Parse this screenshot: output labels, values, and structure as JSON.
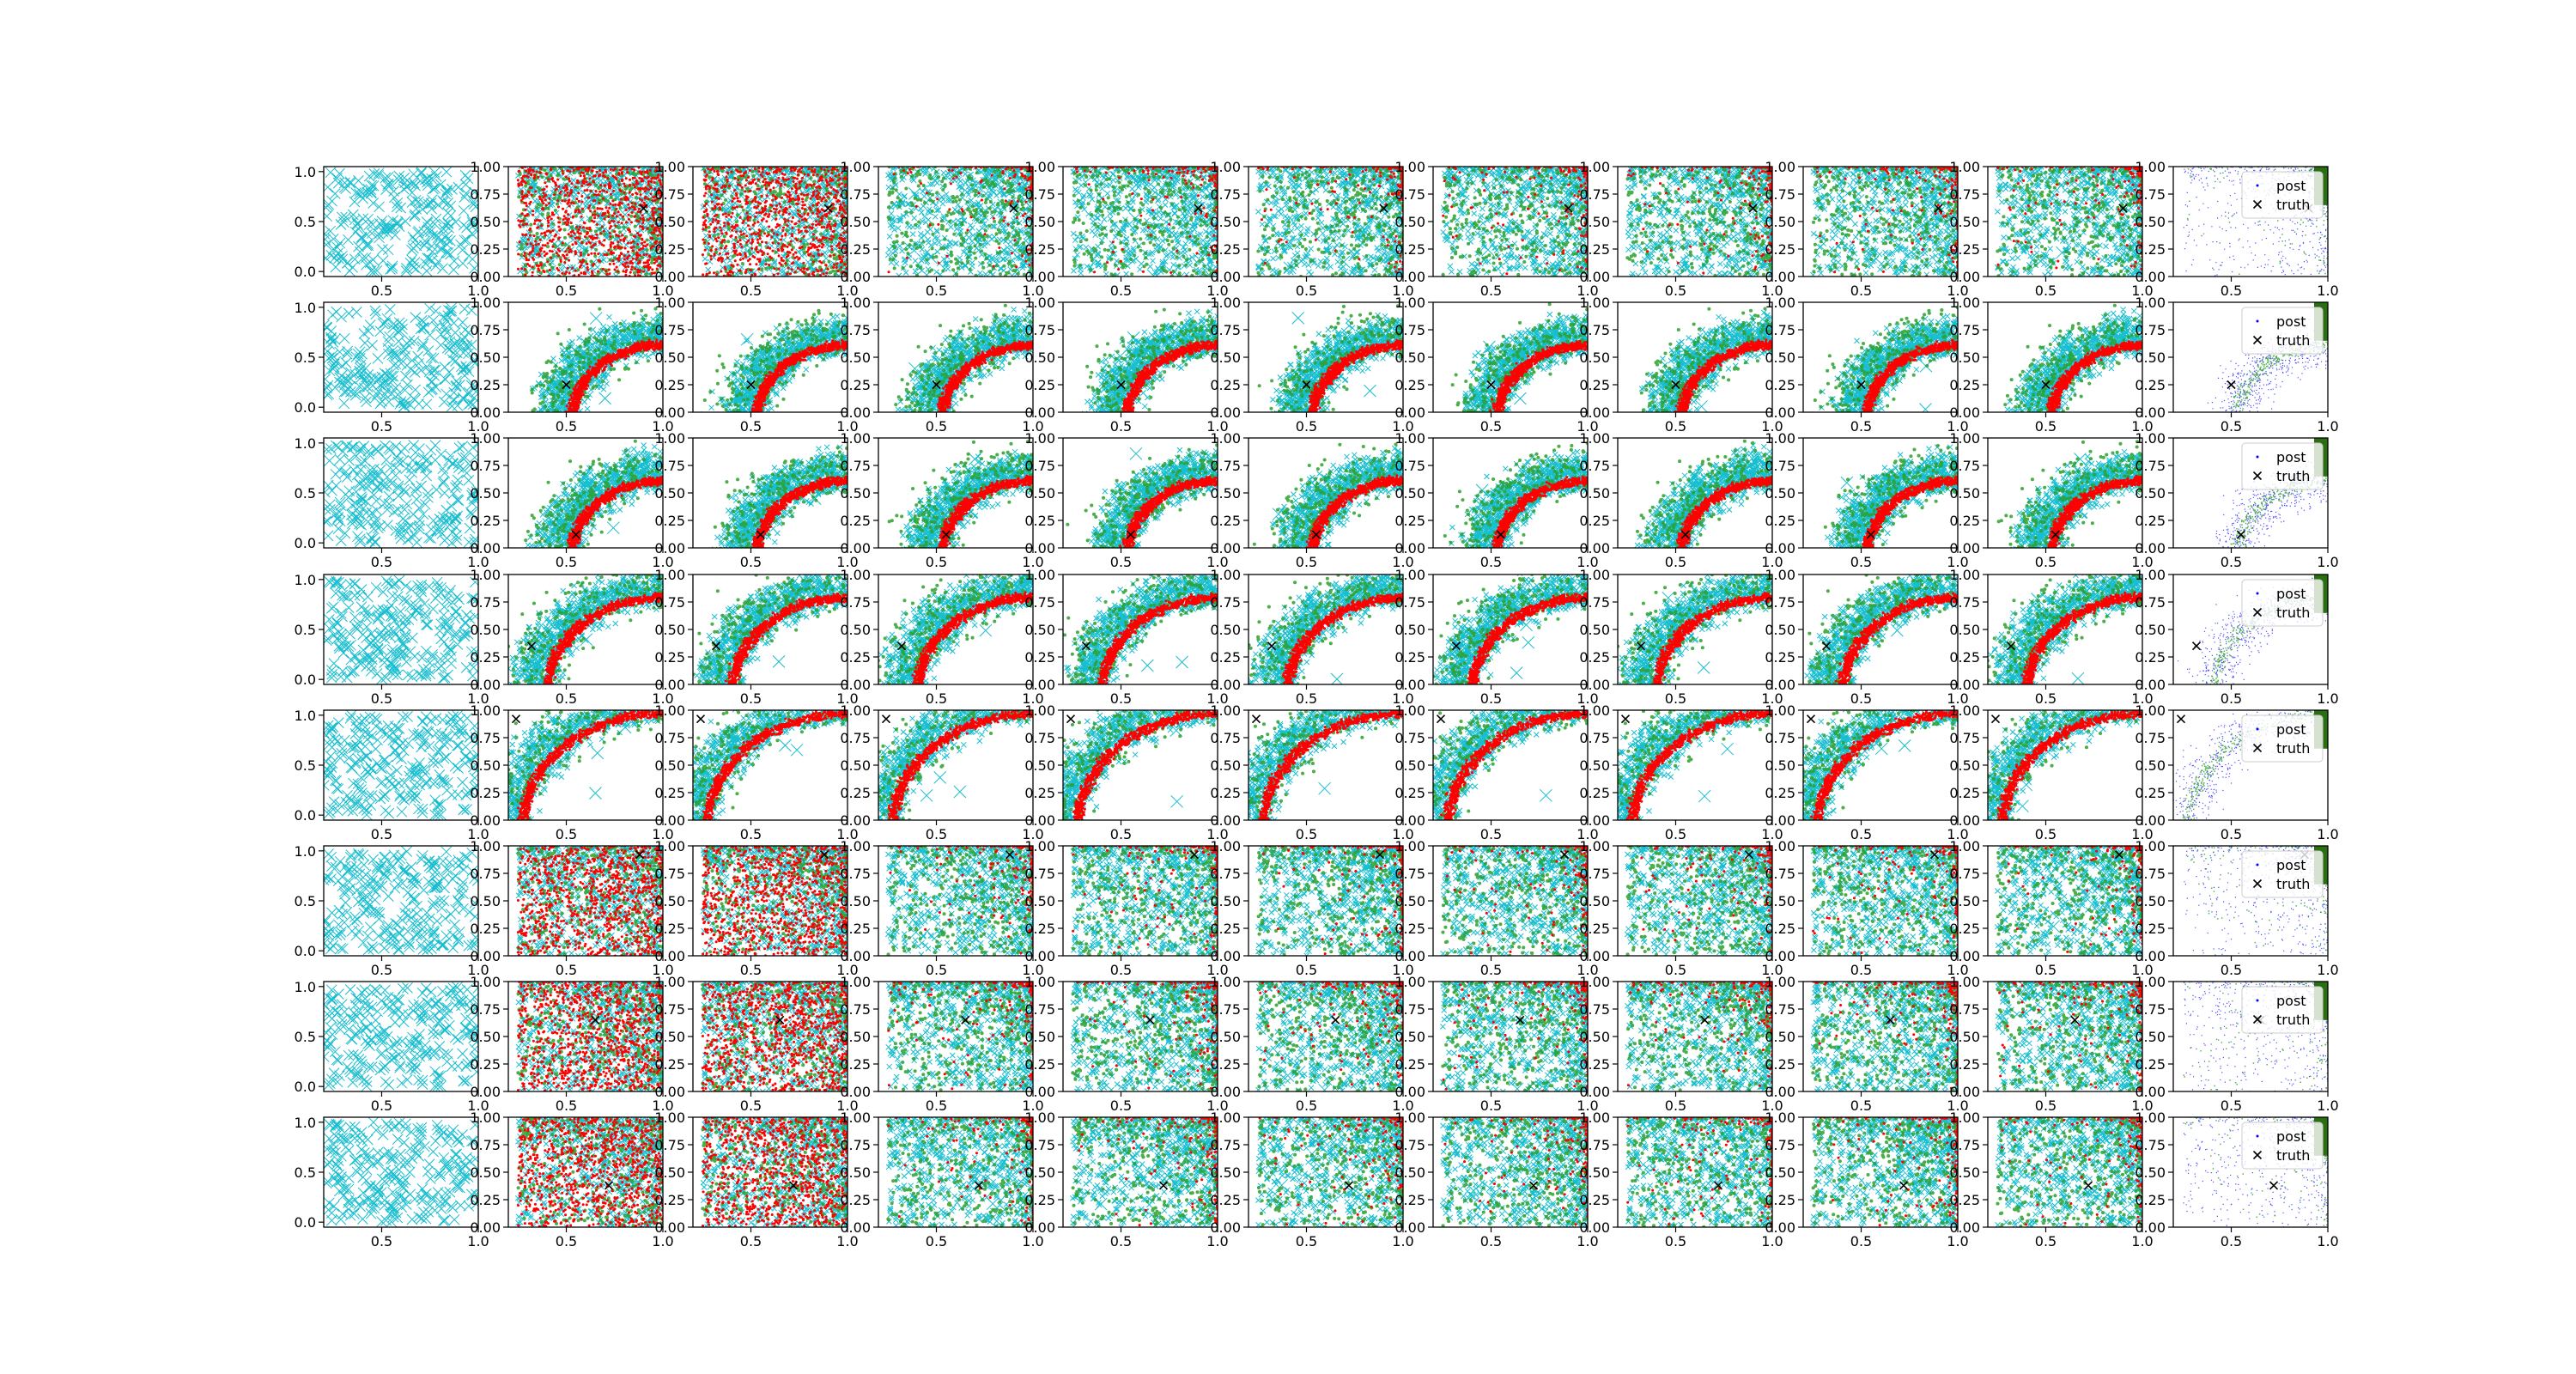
{
  "chart_data": {
    "type": "scatter",
    "grid": {
      "rows": 8,
      "cols": 11
    },
    "grid_lines": false,
    "first_column": {
      "xlim": [
        0.2,
        1.0
      ],
      "ylim": [
        -0.05,
        1.05
      ],
      "xticks": [
        "0.5",
        "1.0"
      ],
      "yticks": [
        "0.0",
        "0.5",
        "1.0"
      ],
      "marker": "x",
      "color": "#17becf"
    },
    "other_columns": {
      "xlim": [
        0.2,
        1.0
      ],
      "ylim": [
        0.0,
        1.0
      ],
      "xticks": [
        "0.5",
        "1.0"
      ],
      "yticks": [
        "0.00",
        "0.25",
        "0.50",
        "0.75",
        "1.00"
      ]
    },
    "series_colors": {
      "samples": "#17becf",
      "accepted": "#ff0000",
      "green": "#2ca02c",
      "post_blue": "#0000ff",
      "truth": "#000000"
    },
    "truth_points": [
      {
        "row": 1,
        "x": 0.9,
        "y": 0.62
      },
      {
        "row": 2,
        "x": 0.5,
        "y": 0.25
      },
      {
        "row": 3,
        "x": 0.55,
        "y": 0.12
      },
      {
        "row": 4,
        "x": 0.32,
        "y": 0.35
      },
      {
        "row": 5,
        "x": 0.24,
        "y": 0.92
      },
      {
        "row": 6,
        "x": 0.88,
        "y": 0.92
      },
      {
        "row": 7,
        "x": 0.65,
        "y": 0.65
      },
      {
        "row": 8,
        "x": 0.72,
        "y": 0.38
      }
    ],
    "legend": {
      "column": 11,
      "placement": "upper right",
      "entries": [
        "post",
        "truth"
      ]
    }
  }
}
